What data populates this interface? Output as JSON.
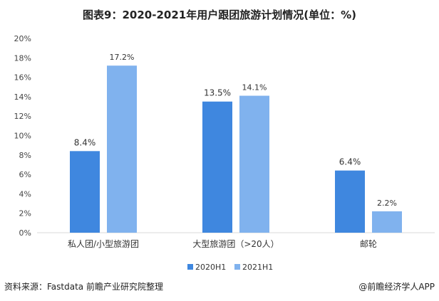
{
  "chart_data": {
    "type": "bar",
    "title": "图表9：2020-2021年用户跟团旅游计划情况(单位：%)",
    "xlabel": "",
    "ylabel": "",
    "ylim": [
      0,
      20
    ],
    "yticks": [
      "0%",
      "2%",
      "4%",
      "6%",
      "8%",
      "10%",
      "12%",
      "14%",
      "16%",
      "18%",
      "20%"
    ],
    "categories": [
      "私人团/小型旅游团",
      "大型旅游团（>20人）",
      "邮轮"
    ],
    "series": [
      {
        "name": "2020H1",
        "color": "#3f87df",
        "values": [
          8.4,
          13.5,
          6.4
        ],
        "labels": [
          "8.4%",
          "13.5%",
          "6.4%"
        ]
      },
      {
        "name": "2021H1",
        "color": "#80b2ee",
        "values": [
          17.2,
          14.1,
          2.2
        ],
        "labels": [
          "17.2%",
          "14.1%",
          "2.2%"
        ]
      }
    ],
    "legend_position": "bottom",
    "grid": false
  },
  "footer": {
    "source": "资料来源：Fastdata 前瞻产业研究院整理",
    "credit": "@前瞻经济学人APP"
  }
}
